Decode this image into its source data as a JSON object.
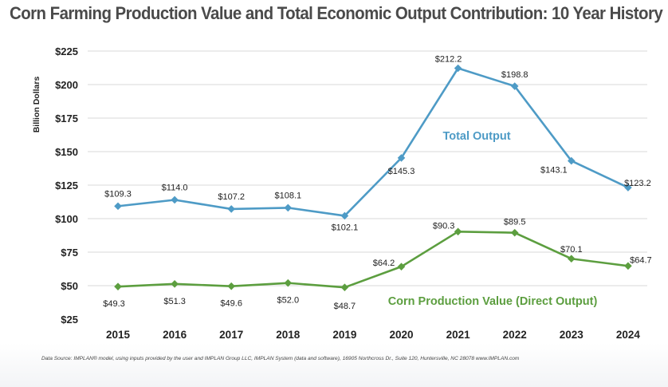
{
  "title": "Corn Farming Production Value and Total Economic Output Contribution: 10 Year History",
  "source": "Data Source: IMPLAN® model, using inputs provided by the user and IMPLAN Group LLC, IMPLAN System (data and software), 16905 Northcross Dr., Suite 120, Huntersville, NC 28078 www.IMPLAN.com",
  "colors": {
    "total": "#4e9bc6",
    "direct": "#5c9e3f",
    "grid": "#d9d9d9",
    "text": "#222222"
  },
  "chart_data": {
    "type": "line",
    "title": "Corn Farming Production Value and Total Economic Output Contribution: 10 Year History",
    "xlabel": "",
    "ylabel": "Billion Dollars",
    "ylim": [
      25,
      225
    ],
    "yticks": [
      25,
      50,
      75,
      100,
      125,
      150,
      175,
      200,
      225
    ],
    "ytick_labels": [
      "$25",
      "$50",
      "$75",
      "$100",
      "$125",
      "$150",
      "$175",
      "$200",
      "$225"
    ],
    "grid": true,
    "categories": [
      "2015",
      "2016",
      "2017",
      "2018",
      "2019",
      "2020",
      "2021",
      "2022",
      "2023",
      "2024"
    ],
    "series": [
      {
        "name": "Total Output",
        "values": [
          109.3,
          114.0,
          107.2,
          108.1,
          102.1,
          145.3,
          212.2,
          198.8,
          143.1,
          123.2
        ],
        "labels": [
          "$109.3",
          "$114.0",
          "$107.2",
          "$108.1",
          "$102.1",
          "$145.3",
          "$212.2",
          "$198.8",
          "$143.1",
          "$123.2"
        ]
      },
      {
        "name": "Corn Production Value (Direct Output)",
        "values": [
          49.3,
          51.3,
          49.6,
          52.0,
          48.7,
          64.2,
          90.3,
          89.5,
          70.1,
          64.7
        ],
        "labels": [
          "$49.3",
          "$51.3",
          "$49.6",
          "$52.0",
          "$48.7",
          "$64.2",
          "$90.3",
          "$89.5",
          "$70.1",
          "$64.7"
        ]
      }
    ]
  }
}
